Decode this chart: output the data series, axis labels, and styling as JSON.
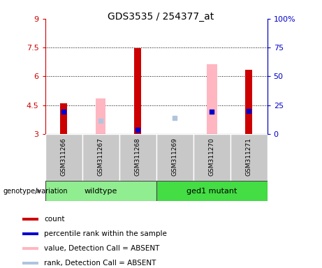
{
  "title": "GDS3535 / 254377_at",
  "samples": [
    "GSM311266",
    "GSM311267",
    "GSM311268",
    "GSM311269",
    "GSM311270",
    "GSM311271"
  ],
  "group_labels": [
    "wildtype",
    "ged1 mutant"
  ],
  "ylim_left": [
    3,
    9
  ],
  "ylim_right": [
    0,
    100
  ],
  "yticks_left": [
    3,
    4.5,
    6,
    7.5,
    9
  ],
  "yticks_right": [
    0,
    25,
    50,
    75,
    100
  ],
  "red_bars": [
    4.6,
    null,
    7.47,
    null,
    null,
    6.35
  ],
  "red_bars_bottom": [
    3,
    null,
    3,
    null,
    null,
    3
  ],
  "pink_bars": [
    null,
    4.85,
    null,
    null,
    6.65,
    null
  ],
  "pink_bars_bottom": [
    null,
    3,
    null,
    null,
    3,
    null
  ],
  "blue_squares_y": [
    4.15,
    null,
    3.2,
    null,
    4.15,
    4.2
  ],
  "light_blue_squares_y": [
    null,
    3.7,
    null,
    3.85,
    null,
    null
  ],
  "red_bar_width": 0.18,
  "pink_bar_width": 0.28,
  "dot_size": 22,
  "legend_items": [
    {
      "label": "count",
      "color": "#CC0000"
    },
    {
      "label": "percentile rank within the sample",
      "color": "#0000CC"
    },
    {
      "label": "value, Detection Call = ABSENT",
      "color": "#FFB6C1"
    },
    {
      "label": "rank, Detection Call = ABSENT",
      "color": "#B0C4DE"
    }
  ],
  "left_axis_color": "#CC0000",
  "right_axis_color": "#0000CC",
  "gray_box_color": "#C8C8C8",
  "wildtype_color": "#90EE90",
  "mutant_color": "#44DD44"
}
